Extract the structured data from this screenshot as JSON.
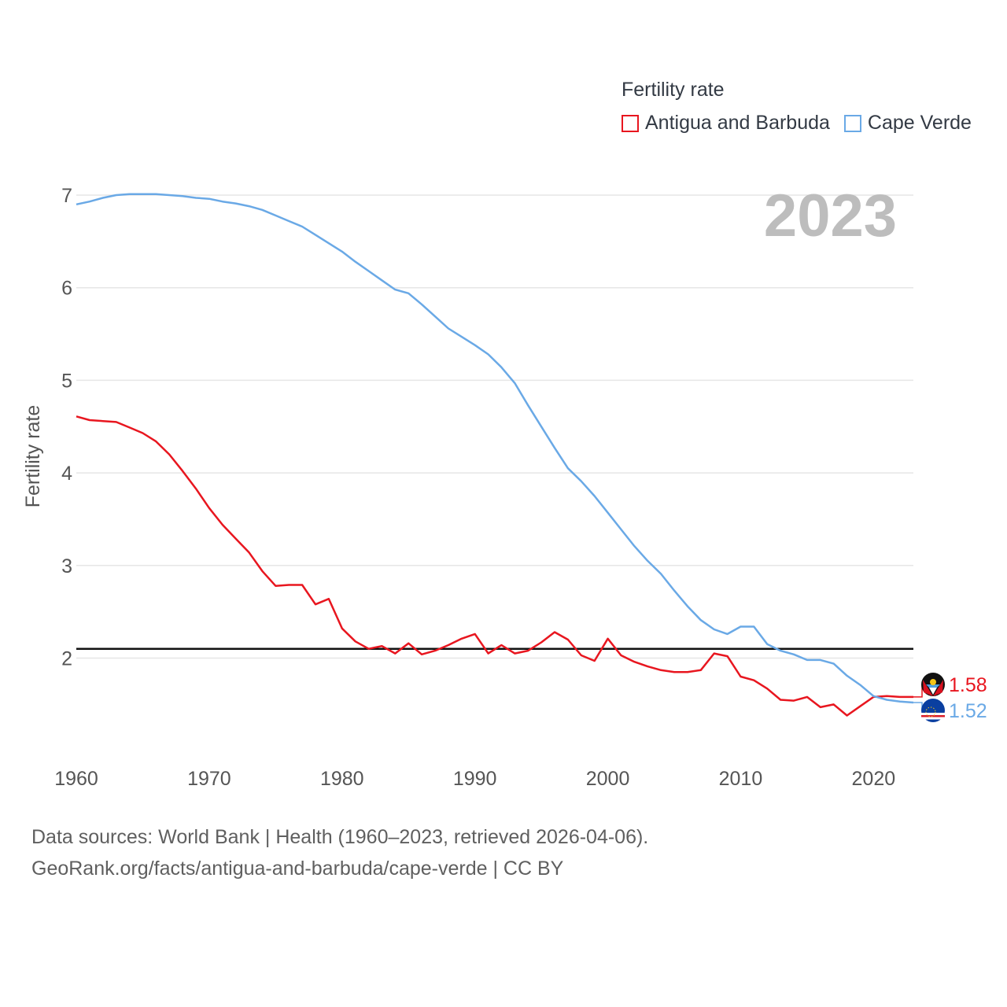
{
  "legend": {
    "title": "Fertility rate",
    "items": [
      {
        "name": "Antigua and Barbuda",
        "color": "#e8161f"
      },
      {
        "name": "Cape Verde",
        "color": "#6aa9e6"
      }
    ]
  },
  "year_label": "2023",
  "source": {
    "line1": "Data sources: World Bank | Health (1960–2023, retrieved 2026-04-06).",
    "line2": "GeoRank.org/facts/antigua-and-barbuda/cape-verde | CC BY"
  },
  "chart_data": {
    "type": "line",
    "title": "Fertility rate",
    "xlabel": "",
    "ylabel": "Fertility rate",
    "xlim": [
      1960,
      2023
    ],
    "ylim": [
      1.0,
      7.3
    ],
    "x_ticks": [
      1960,
      1970,
      1980,
      1990,
      2000,
      2010,
      2020
    ],
    "y_ticks": [
      2,
      3,
      4,
      5,
      6,
      7
    ],
    "grid": true,
    "reference_line": {
      "value": 2.1,
      "color": "#111111"
    },
    "x": [
      1960,
      1961,
      1962,
      1963,
      1964,
      1965,
      1966,
      1967,
      1968,
      1969,
      1970,
      1971,
      1972,
      1973,
      1974,
      1975,
      1976,
      1977,
      1978,
      1979,
      1980,
      1981,
      1982,
      1983,
      1984,
      1985,
      1986,
      1987,
      1988,
      1989,
      1990,
      1991,
      1992,
      1993,
      1994,
      1995,
      1996,
      1997,
      1998,
      1999,
      2000,
      2001,
      2002,
      2003,
      2004,
      2005,
      2006,
      2007,
      2008,
      2009,
      2010,
      2011,
      2012,
      2013,
      2014,
      2015,
      2016,
      2017,
      2018,
      2019,
      2020,
      2021,
      2022,
      2023
    ],
    "series": [
      {
        "name": "Antigua and Barbuda",
        "color": "#e8161f",
        "end_label": "1.58",
        "values": [
          4.61,
          4.57,
          4.56,
          4.55,
          4.49,
          4.43,
          4.34,
          4.2,
          4.02,
          3.83,
          3.62,
          3.44,
          3.29,
          3.14,
          2.94,
          2.78,
          2.79,
          2.79,
          2.58,
          2.64,
          2.32,
          2.18,
          2.1,
          2.13,
          2.05,
          2.16,
          2.04,
          2.08,
          2.14,
          2.21,
          2.26,
          2.05,
          2.14,
          2.05,
          2.08,
          2.17,
          2.28,
          2.2,
          2.03,
          1.97,
          2.21,
          2.03,
          1.96,
          1.91,
          1.87,
          1.85,
          1.85,
          1.87,
          2.05,
          2.02,
          1.8,
          1.76,
          1.67,
          1.55,
          1.54,
          1.58,
          1.47,
          1.5,
          1.38,
          1.48,
          1.58,
          1.59,
          1.58,
          1.58
        ]
      },
      {
        "name": "Cape Verde",
        "color": "#6aa9e6",
        "end_label": "1.52",
        "values": [
          6.9,
          6.93,
          6.97,
          7.0,
          7.01,
          7.01,
          7.01,
          7.0,
          6.99,
          6.97,
          6.96,
          6.93,
          6.91,
          6.88,
          6.84,
          6.78,
          6.72,
          6.66,
          6.57,
          6.48,
          6.39,
          6.28,
          6.18,
          6.08,
          5.98,
          5.94,
          5.82,
          5.69,
          5.56,
          5.47,
          5.38,
          5.28,
          5.14,
          4.97,
          4.73,
          4.5,
          4.27,
          4.05,
          3.91,
          3.75,
          3.57,
          3.39,
          3.21,
          3.05,
          2.91,
          2.73,
          2.56,
          2.41,
          2.31,
          2.26,
          2.34,
          2.34,
          2.15,
          2.08,
          2.04,
          1.98,
          1.98,
          1.94,
          1.81,
          1.71,
          1.59,
          1.55,
          1.53,
          1.52
        ]
      }
    ]
  }
}
